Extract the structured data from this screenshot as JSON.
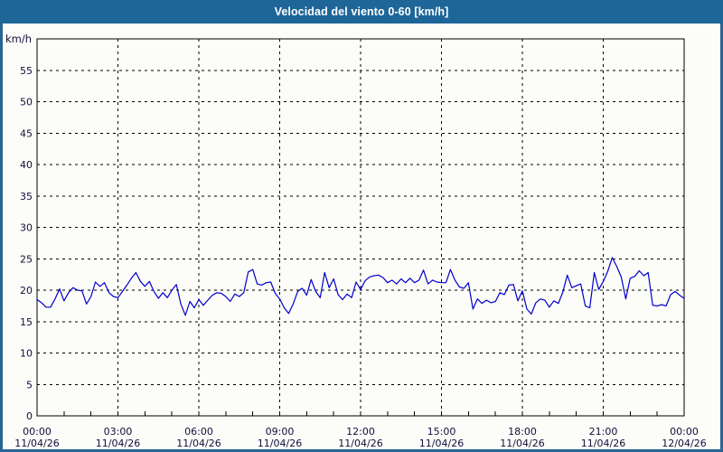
{
  "title": "Velocidad del viento 0-60 [km/h]",
  "colors": {
    "titlebar_bg": "#1e6598",
    "frame_border": "#2a6394",
    "background": "#fcfcf9",
    "line": "#0000cc",
    "grid": "#000000",
    "tick_text": "#10103a",
    "title_text": "#ffffff"
  },
  "chart_data": {
    "type": "line",
    "title": "Velocidad del viento 0-60 [km/h]",
    "ylabel": "km/h",
    "ylim": [
      0,
      60
    ],
    "y_tick_step": 5,
    "y_tick_labels": [
      0,
      5,
      10,
      15,
      20,
      25,
      30,
      35,
      40,
      45,
      50,
      55
    ],
    "grid": "dashed, horizontal every 5 km/h, vertical every 3 h",
    "legend": "none",
    "x_ticks": [
      {
        "time": "00:00",
        "date": "11/04/26"
      },
      {
        "time": "03:00",
        "date": "11/04/26"
      },
      {
        "time": "06:00",
        "date": "11/04/26"
      },
      {
        "time": "09:00",
        "date": "11/04/26"
      },
      {
        "time": "12:00",
        "date": "11/04/26"
      },
      {
        "time": "15:00",
        "date": "11/04/26"
      },
      {
        "time": "18:00",
        "date": "11/04/26"
      },
      {
        "time": "21:00",
        "date": "11/04/26"
      },
      {
        "time": "00:00",
        "date": "12/04/26"
      }
    ],
    "x_minor_tick_hours": 1,
    "sample_interval_minutes": 10,
    "values": [
      18.5,
      18.0,
      17.3,
      17.3,
      18.6,
      20.2,
      18.3,
      19.6,
      20.4,
      20.0,
      19.9,
      17.8,
      19.0,
      21.3,
      20.6,
      21.2,
      19.6,
      19.0,
      18.8,
      19.8,
      20.8,
      21.9,
      22.8,
      21.4,
      20.6,
      21.4,
      19.8,
      18.7,
      19.6,
      18.8,
      20.0,
      20.9,
      17.8,
      16.0,
      18.2,
      17.2,
      18.5,
      17.6,
      18.4,
      19.2,
      19.6,
      19.5,
      19.0,
      18.2,
      19.4,
      19.0,
      19.6,
      22.9,
      23.3,
      21.0,
      20.8,
      21.2,
      21.3,
      19.5,
      18.6,
      17.2,
      16.3,
      17.8,
      19.8,
      20.3,
      19.2,
      21.7,
      19.8,
      18.8,
      22.8,
      20.4,
      21.8,
      19.3,
      18.5,
      19.4,
      18.8,
      21.3,
      20.1,
      21.5,
      22.1,
      22.3,
      22.4,
      22.0,
      21.2,
      21.6,
      21.0,
      21.8,
      21.2,
      21.9,
      21.2,
      21.6,
      23.2,
      21.0,
      21.6,
      21.3,
      21.2,
      21.2,
      23.3,
      21.6,
      20.5,
      20.3,
      21.2,
      17.0,
      18.6,
      17.9,
      18.4,
      18.0,
      18.2,
      19.6,
      19.3,
      20.8,
      20.9,
      18.3,
      19.9,
      17.0,
      16.2,
      18.0,
      18.6,
      18.4,
      17.3,
      18.3,
      17.9,
      19.7,
      22.4,
      20.4,
      20.7,
      21.0,
      17.5,
      17.2,
      22.8,
      20.1,
      21.4,
      23.0,
      25.2,
      23.8,
      22.1,
      18.6,
      21.9,
      22.2,
      23.1,
      22.3,
      22.8,
      17.6,
      17.5,
      17.7,
      17.5,
      19.3,
      19.8,
      19.2,
      18.7
    ]
  }
}
